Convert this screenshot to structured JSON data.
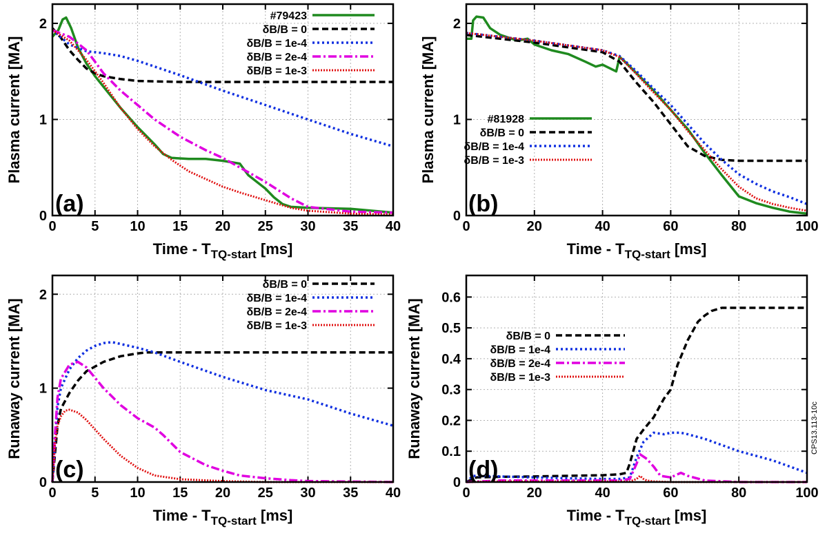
{
  "side_note": "CPS13.113-10c",
  "colors": {
    "experiment": "#1f8a1f",
    "db0": "#000000",
    "db1e4": "#1030e0",
    "db2e4": "#e000e0",
    "db1e3": "#e01010"
  },
  "chart_data": [
    {
      "panel": "(a)",
      "type": "line",
      "xlabel": "Time - T",
      "xlabel_sub": "TQ-start",
      "xlabel_unit": "[ms]",
      "ylabel": "Plasma current [MA]",
      "xlim": [
        0,
        40
      ],
      "ylim": [
        0,
        2.2
      ],
      "xticks": [
        0,
        5,
        10,
        15,
        20,
        25,
        30,
        35,
        40
      ],
      "yticks": [
        0,
        1,
        2
      ],
      "grid": true,
      "legend": "top-right",
      "series": [
        {
          "name": "#79423",
          "style": "experiment",
          "x": [
            0,
            0.7,
            1.2,
            1.6,
            2.2,
            3,
            4,
            5,
            6,
            8,
            10,
            12,
            13,
            14,
            16,
            18,
            20,
            22,
            23,
            25,
            26,
            27,
            28,
            30,
            35,
            40
          ],
          "y": [
            1.86,
            1.93,
            2.04,
            2.06,
            1.95,
            1.75,
            1.58,
            1.45,
            1.34,
            1.12,
            0.92,
            0.74,
            0.64,
            0.6,
            0.59,
            0.59,
            0.57,
            0.54,
            0.42,
            0.28,
            0.19,
            0.12,
            0.09,
            0.08,
            0.07,
            0.03
          ]
        },
        {
          "name": "δB/B = 0",
          "style": "db0",
          "x": [
            0,
            1,
            2,
            3,
            4,
            5,
            6,
            8,
            10,
            15,
            20,
            30,
            40
          ],
          "y": [
            1.95,
            1.85,
            1.72,
            1.62,
            1.53,
            1.48,
            1.45,
            1.42,
            1.4,
            1.39,
            1.39,
            1.39,
            1.39
          ]
        },
        {
          "name": "δB/B = 1e-4",
          "style": "db1e4",
          "x": [
            0,
            2,
            4,
            5,
            6,
            8,
            10,
            12,
            15,
            20,
            25,
            30,
            35,
            40
          ],
          "y": [
            1.93,
            1.78,
            1.71,
            1.7,
            1.69,
            1.66,
            1.61,
            1.55,
            1.46,
            1.3,
            1.15,
            1.0,
            0.85,
            0.72
          ]
        },
        {
          "name": "δB/B = 2e-4",
          "style": "db2e4",
          "x": [
            0,
            2,
            4,
            5,
            6,
            8,
            10,
            12,
            15,
            18,
            20,
            22,
            25,
            28,
            30,
            35,
            40
          ],
          "y": [
            1.93,
            1.86,
            1.72,
            1.6,
            1.48,
            1.3,
            1.15,
            1.0,
            0.82,
            0.68,
            0.6,
            0.5,
            0.35,
            0.18,
            0.09,
            0.04,
            0.03
          ]
        },
        {
          "name": "δB/B = 1e-3",
          "style": "db1e3",
          "x": [
            0,
            2,
            4,
            5,
            6,
            8,
            10,
            12,
            14,
            16,
            20,
            22,
            25,
            28,
            30,
            35,
            40
          ],
          "y": [
            1.93,
            1.82,
            1.62,
            1.5,
            1.38,
            1.12,
            0.9,
            0.72,
            0.58,
            0.46,
            0.3,
            0.24,
            0.16,
            0.08,
            0.05,
            0.02,
            0.01
          ]
        }
      ]
    },
    {
      "panel": "(b)",
      "type": "line",
      "xlabel": "Time - T",
      "xlabel_sub": "TQ-start",
      "xlabel_unit": "[ms]",
      "ylabel": "Plasma current [MA]",
      "xlim": [
        0,
        100
      ],
      "ylim": [
        0,
        2.2
      ],
      "xticks": [
        0,
        20,
        40,
        60,
        80,
        100
      ],
      "yticks": [
        0,
        1,
        2
      ],
      "grid": true,
      "legend": "middle-left",
      "series": [
        {
          "name": "#81928",
          "style": "experiment",
          "x": [
            0,
            1.5,
            2,
            3,
            5,
            7,
            10,
            15,
            18,
            20,
            25,
            30,
            35,
            38,
            40,
            44,
            45,
            46,
            50,
            55,
            60,
            65,
            70,
            75,
            80,
            85,
            90,
            95,
            100
          ],
          "y": [
            1.84,
            1.84,
            2.03,
            2.07,
            2.06,
            1.95,
            1.88,
            1.82,
            1.84,
            1.78,
            1.72,
            1.68,
            1.6,
            1.55,
            1.57,
            1.5,
            1.65,
            1.62,
            1.48,
            1.3,
            1.1,
            0.9,
            0.65,
            0.42,
            0.2,
            0.13,
            0.08,
            0.04,
            0.02
          ]
        },
        {
          "name": "δB/B = 0",
          "style": "db0",
          "x": [
            0,
            20,
            40,
            45,
            50,
            55,
            60,
            65,
            70,
            75,
            80,
            90,
            100
          ],
          "y": [
            1.88,
            1.8,
            1.7,
            1.6,
            1.38,
            1.18,
            0.95,
            0.72,
            0.62,
            0.58,
            0.57,
            0.57,
            0.57
          ]
        },
        {
          "name": "δB/B = 1e-4",
          "style": "db1e4",
          "x": [
            0,
            20,
            40,
            45,
            50,
            55,
            60,
            65,
            70,
            75,
            80,
            85,
            90,
            95,
            100
          ],
          "y": [
            1.9,
            1.82,
            1.72,
            1.66,
            1.5,
            1.32,
            1.15,
            0.95,
            0.75,
            0.58,
            0.43,
            0.33,
            0.25,
            0.19,
            0.12
          ]
        },
        {
          "name": "δB/B = 1e-3",
          "style": "db1e3",
          "x": [
            0,
            20,
            40,
            45,
            50,
            55,
            60,
            65,
            70,
            75,
            80,
            85,
            90,
            95,
            100
          ],
          "y": [
            1.9,
            1.82,
            1.72,
            1.65,
            1.47,
            1.28,
            1.1,
            0.88,
            0.68,
            0.48,
            0.3,
            0.18,
            0.12,
            0.08,
            0.05
          ]
        }
      ]
    },
    {
      "panel": "(c)",
      "type": "line",
      "xlabel": "Time - T",
      "xlabel_sub": "TQ-start",
      "xlabel_unit": "[ms]",
      "ylabel": "Runaway current [MA]",
      "xlim": [
        0,
        40
      ],
      "ylim": [
        0,
        2.2
      ],
      "xticks": [
        0,
        5,
        10,
        15,
        20,
        25,
        30,
        35,
        40
      ],
      "yticks": [
        0,
        1,
        2
      ],
      "grid": true,
      "legend": "top-right",
      "series": [
        {
          "name": "δB/B = 0",
          "style": "db0",
          "x": [
            0,
            0.3,
            0.6,
            1,
            2,
            3,
            4,
            6,
            8,
            10,
            11,
            15,
            20,
            30,
            40
          ],
          "y": [
            0,
            0.3,
            0.6,
            0.78,
            0.95,
            1.08,
            1.18,
            1.28,
            1.34,
            1.37,
            1.38,
            1.38,
            1.38,
            1.38,
            1.38
          ]
        },
        {
          "name": "δB/B = 1e-4",
          "style": "db1e4",
          "x": [
            0,
            0.3,
            0.6,
            1,
            2,
            3,
            4,
            5,
            6,
            7,
            8,
            10,
            12,
            15,
            20,
            25,
            30,
            35,
            40
          ],
          "y": [
            0,
            0.4,
            0.8,
            1.0,
            1.2,
            1.32,
            1.4,
            1.45,
            1.48,
            1.49,
            1.47,
            1.43,
            1.38,
            1.28,
            1.12,
            0.98,
            0.88,
            0.73,
            0.6
          ]
        },
        {
          "name": "δB/B = 2e-4",
          "style": "db2e4",
          "x": [
            0,
            0.3,
            0.6,
            1,
            2,
            3,
            4,
            6,
            8,
            10,
            12,
            13,
            15,
            18,
            20,
            22,
            25,
            28,
            30,
            35,
            40
          ],
          "y": [
            0,
            0.5,
            0.9,
            1.1,
            1.25,
            1.28,
            1.22,
            1.0,
            0.82,
            0.68,
            0.58,
            0.5,
            0.32,
            0.18,
            0.12,
            0.07,
            0.04,
            0.02,
            0.01,
            0.005,
            0.0
          ]
        },
        {
          "name": "δB/B = 1e-3",
          "style": "db1e3",
          "x": [
            0,
            0.3,
            0.6,
            1,
            1.5,
            2,
            3,
            4,
            5,
            6,
            8,
            10,
            12,
            15,
            20,
            25,
            30,
            40
          ],
          "y": [
            0,
            0.4,
            0.6,
            0.7,
            0.76,
            0.77,
            0.74,
            0.66,
            0.56,
            0.46,
            0.28,
            0.15,
            0.07,
            0.03,
            0.01,
            0.0,
            0.0,
            0.0
          ]
        }
      ]
    },
    {
      "panel": "(d)",
      "type": "line",
      "xlabel": "Time - T",
      "xlabel_sub": "TQ-start",
      "xlabel_unit": "[ms]",
      "ylabel": "Runaway current [MA]",
      "xlim": [
        0,
        100
      ],
      "ylim": [
        0,
        0.67
      ],
      "xticks": [
        0,
        20,
        40,
        60,
        80,
        100
      ],
      "yticks": [
        0,
        0.1,
        0.2,
        0.3,
        0.4,
        0.5,
        0.6
      ],
      "grid": true,
      "legend": "left",
      "series": [
        {
          "name": "δB/B = 0",
          "style": "db0",
          "x": [
            0,
            2,
            3,
            10,
            20,
            30,
            40,
            45,
            47,
            48,
            49,
            50,
            52,
            55,
            58,
            60,
            62,
            65,
            68,
            70,
            72,
            75,
            100
          ],
          "y": [
            0,
            0.01,
            0.015,
            0.017,
            0.018,
            0.02,
            0.022,
            0.025,
            0.03,
            0.06,
            0.1,
            0.14,
            0.17,
            0.21,
            0.27,
            0.3,
            0.38,
            0.46,
            0.52,
            0.54,
            0.555,
            0.565,
            0.565
          ]
        },
        {
          "name": "δB/B = 1e-4",
          "style": "db1e4",
          "x": [
            0,
            2,
            10,
            20,
            30,
            40,
            45,
            48,
            50,
            52,
            55,
            58,
            60,
            63,
            65,
            70,
            75,
            80,
            85,
            90,
            95,
            100
          ],
          "y": [
            0,
            0.02,
            0.018,
            0.015,
            0.012,
            0.01,
            0.01,
            0.015,
            0.08,
            0.13,
            0.16,
            0.155,
            0.16,
            0.16,
            0.155,
            0.14,
            0.12,
            0.1,
            0.085,
            0.07,
            0.05,
            0.03
          ]
        },
        {
          "name": "δB/B = 2e-4",
          "style": "db2e4",
          "x": [
            0,
            10,
            20,
            30,
            40,
            45,
            48,
            50,
            51,
            53,
            55,
            57,
            60,
            62,
            63,
            65,
            70,
            80,
            100
          ],
          "y": [
            0,
            0.005,
            0.005,
            0.005,
            0.005,
            0.005,
            0.01,
            0.06,
            0.09,
            0.075,
            0.05,
            0.02,
            0.015,
            0.025,
            0.03,
            0.02,
            0.005,
            0.0,
            0.0
          ]
        },
        {
          "name": "δB/B = 1e-3",
          "style": "db1e3",
          "x": [
            0,
            10,
            20,
            30,
            40,
            48,
            50,
            51,
            52,
            53,
            55,
            60,
            100
          ],
          "y": [
            0,
            0.002,
            0.002,
            0.002,
            0.002,
            0.002,
            0.01,
            0.02,
            0.01,
            0.005,
            0.002,
            0.0,
            0.0
          ]
        }
      ]
    }
  ]
}
